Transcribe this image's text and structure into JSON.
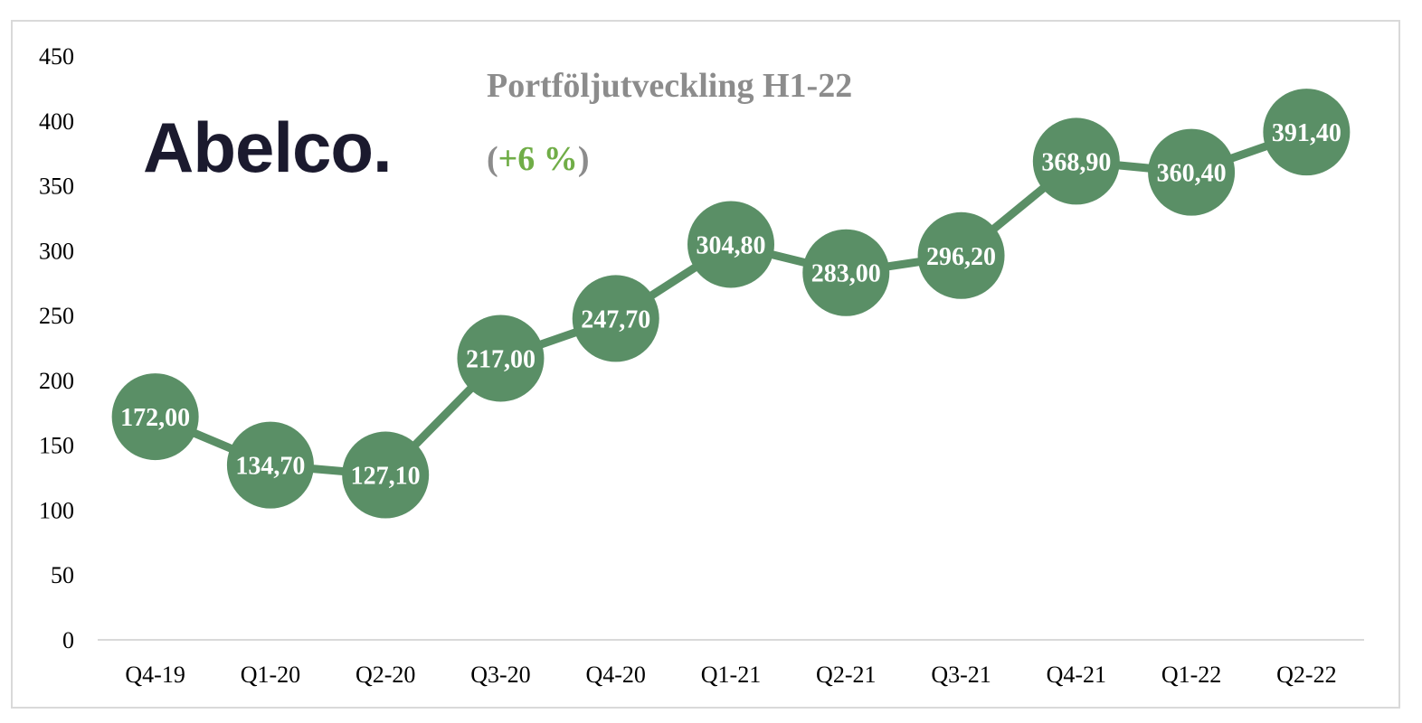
{
  "colors": {
    "series": "#5a8f66",
    "title": "#8c8c8c",
    "accent": "#70ad47",
    "logo": "#1b1a2e",
    "axis": "#d9d9d9"
  },
  "logo": {
    "text": "Abelco."
  },
  "chart_data": {
    "type": "line",
    "title": "Portföljutveckling H1-22",
    "subtitle": {
      "open": "(",
      "highlight": "+6 %",
      "close": ")"
    },
    "categories": [
      "Q4-19",
      "Q1-20",
      "Q2-20",
      "Q3-20",
      "Q4-20",
      "Q1-21",
      "Q2-21",
      "Q3-21",
      "Q4-21",
      "Q1-22",
      "Q2-22"
    ],
    "series": [
      {
        "values": [
          172.0,
          134.7,
          127.1,
          217.0,
          247.7,
          304.8,
          283.0,
          296.2,
          368.9,
          360.4,
          391.4
        ],
        "labels": [
          "172,00",
          "134,70",
          "127,10",
          "217,00",
          "247,70",
          "304,80",
          "283,00",
          "296,20",
          "368,90",
          "360,40",
          "391,40"
        ]
      }
    ],
    "yticks": [
      "0",
      "50",
      "100",
      "150",
      "200",
      "250",
      "300",
      "350",
      "400",
      "450"
    ],
    "ylim": [
      0,
      450
    ],
    "grid": false,
    "legend": "none",
    "marker": "circle"
  }
}
